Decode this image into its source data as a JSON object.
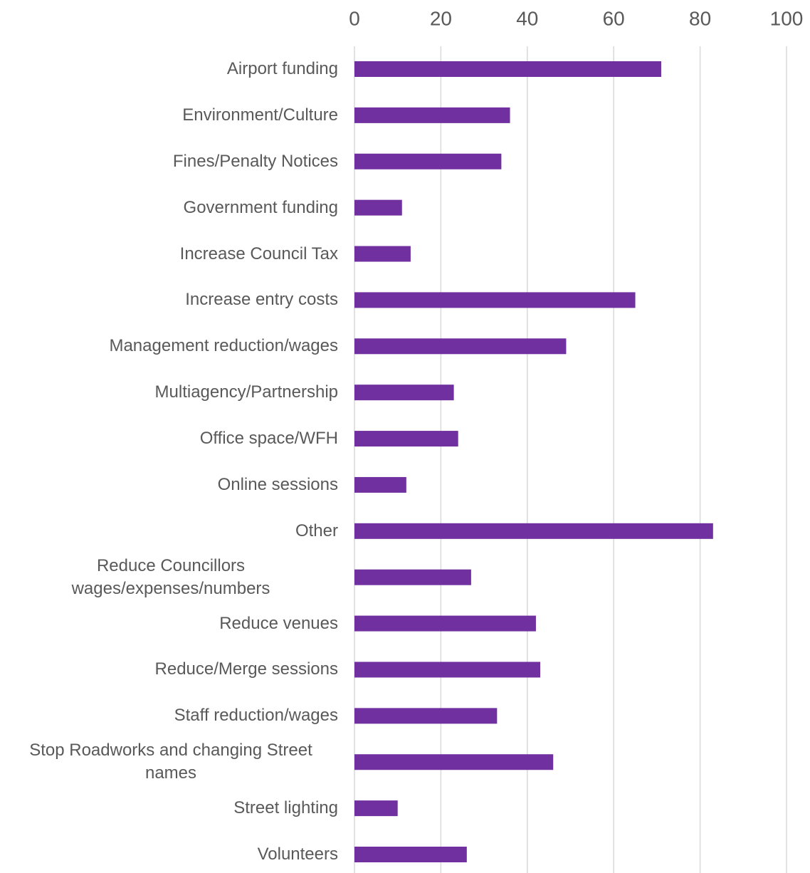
{
  "chart_data": {
    "type": "bar",
    "orientation": "horizontal",
    "categories": [
      "Airport funding",
      "Environment/Culture",
      "Fines/Penalty Notices",
      "Government funding",
      "Increase Council Tax",
      "Increase entry costs",
      "Management reduction/wages",
      "Multiagency/Partnership",
      "Office space/WFH",
      "Online sessions",
      "Other",
      "Reduce Councillors wages/expenses/numbers",
      "Reduce venues",
      "Reduce/Merge sessions",
      "Staff reduction/wages",
      "Stop Roadworks and changing Street names",
      "Street lighting",
      "Volunteers"
    ],
    "values": [
      71,
      36,
      34,
      11,
      13,
      65,
      49,
      23,
      24,
      12,
      83,
      27,
      42,
      43,
      33,
      46,
      10,
      26
    ],
    "color": "#7030a0",
    "xlim": [
      0,
      100
    ],
    "xticks": [
      0,
      20,
      40,
      60,
      80,
      100
    ],
    "grid": true
  }
}
